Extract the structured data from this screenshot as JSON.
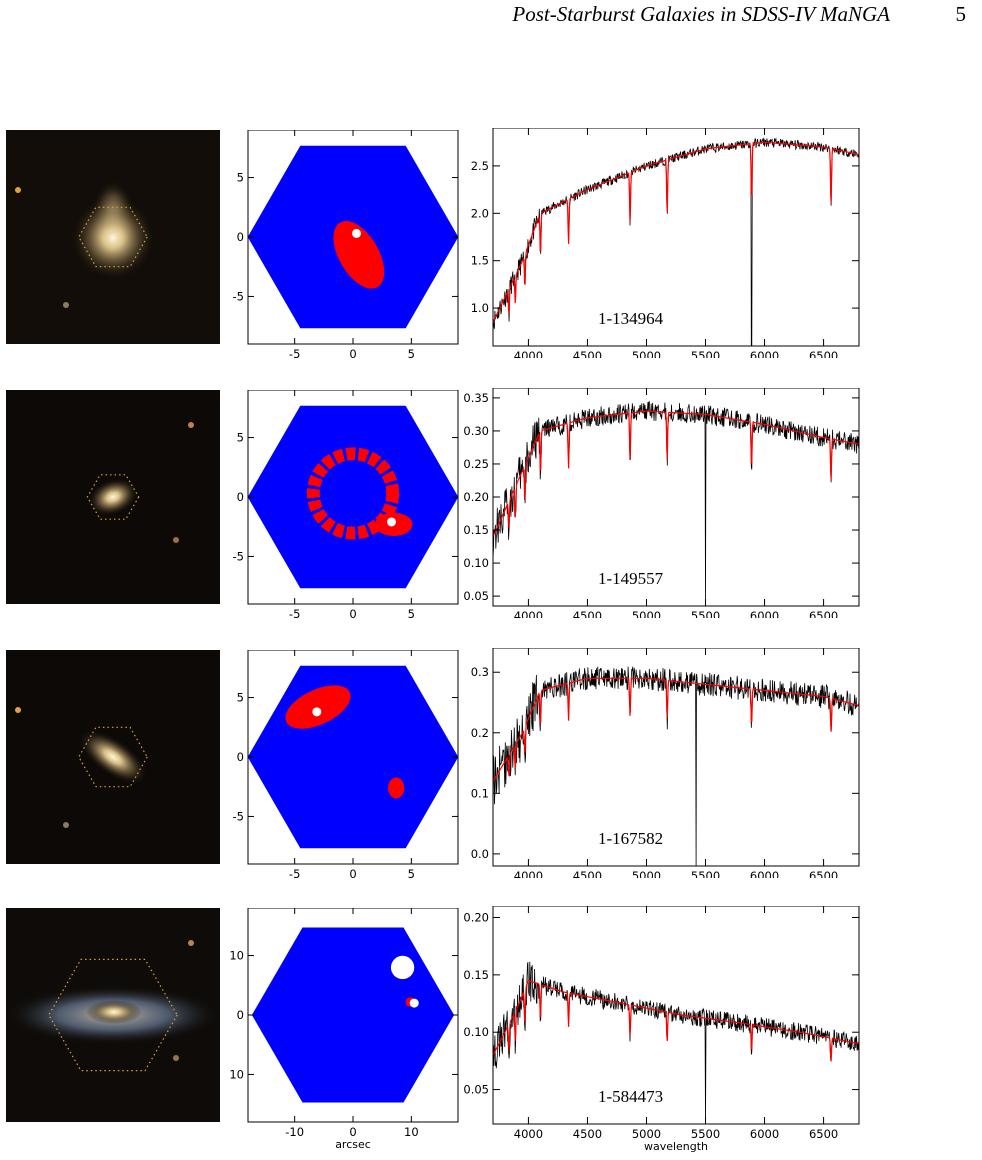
{
  "header": {
    "running_title": "Post-Starburst Galaxies in SDSS-IV MaNGA",
    "page_number": "5"
  },
  "axes_titles": {
    "map_x": "arcsec",
    "spectrum_x": "wavelength"
  },
  "colors": {
    "map_fill": "#0000ff",
    "psb_region": "#ff0000",
    "spectrum_data": "#000000",
    "spectrum_model": "#ff0000",
    "ifu_outline": "#d8a335"
  },
  "galaxies": [
    {
      "plate_ifu": "1-134964",
      "image": {
        "ifu_hex_radius_frac": 0.16,
        "galaxy": "compact-bulge",
        "bg": "#120d08"
      },
      "map": {
        "x_ticks": [
          "-5",
          "0",
          "5"
        ],
        "y_ticks": [
          "5",
          "0",
          "-5"
        ],
        "x_tick_values": [
          -5,
          0,
          5
        ],
        "y_tick_values": [
          5,
          0,
          -5
        ],
        "range": [
          -9,
          9
        ],
        "ifu_radius": 8.6,
        "psb_blobs": [
          {
            "x": 0.5,
            "y": -1.5,
            "rx": 1.7,
            "ry": 3.2,
            "rot": -30
          }
        ],
        "hole": null,
        "center_dot": {
          "x": 0.3,
          "y": 0.3
        }
      },
      "spectrum": {
        "y_ticks": [
          "2.5",
          "2.0",
          "1.5",
          "1.0"
        ],
        "y_tick_values": [
          2.5,
          2.0,
          1.5,
          1.0
        ],
        "ylim": [
          0.6,
          2.9
        ],
        "x_ticks": [
          "4000",
          "4500",
          "5000",
          "5500",
          "6000",
          "6500"
        ],
        "x_tick_values": [
          4000,
          4500,
          5000,
          5500,
          6000,
          6500
        ],
        "xlim": [
          3700,
          6800
        ],
        "continuum": [
          [
            3700,
            0.85
          ],
          [
            3950,
            1.5
          ],
          [
            4100,
            2.0
          ],
          [
            4500,
            2.25
          ],
          [
            5000,
            2.5
          ],
          [
            5500,
            2.68
          ],
          [
            6000,
            2.75
          ],
          [
            6500,
            2.7
          ],
          [
            6800,
            2.62
          ]
        ],
        "noise": 0.05,
        "spike": 5890
      }
    },
    {
      "plate_ifu": "1-149557",
      "image": {
        "ifu_hex_radius_frac": 0.12,
        "galaxy": "small-elliptical",
        "bg": "#0c0906"
      },
      "map": {
        "x_ticks": [
          "-5",
          "0",
          "5"
        ],
        "y_ticks": [
          "5",
          "0",
          "-5"
        ],
        "x_tick_values": [
          -5,
          0,
          5
        ],
        "y_tick_values": [
          5,
          0,
          -5
        ],
        "range": [
          -9,
          9
        ],
        "ifu_radius": 8.6,
        "psb_ring": {
          "x": 0,
          "y": 0.3,
          "r": 3.4,
          "w": 1.1
        },
        "psb_blobs": [
          {
            "x": 3.5,
            "y": -2.3,
            "rx": 1.6,
            "ry": 1.0,
            "rot": 0
          }
        ],
        "hole": null,
        "center_dot": {
          "x": 3.3,
          "y": -2.1
        }
      },
      "spectrum": {
        "y_ticks": [
          "0.35",
          "0.30",
          "0.25",
          "0.20",
          "0.15",
          "0.10",
          "0.05"
        ],
        "y_tick_values": [
          0.35,
          0.3,
          0.25,
          0.2,
          0.15,
          0.1,
          0.05
        ],
        "ylim": [
          0.035,
          0.365
        ],
        "x_ticks": [
          "4000",
          "4500",
          "5000",
          "5500",
          "6000",
          "6500"
        ],
        "x_tick_values": [
          4000,
          4500,
          5000,
          5500,
          6000,
          6500
        ],
        "xlim": [
          3700,
          6800
        ],
        "continuum": [
          [
            3700,
            0.14
          ],
          [
            3950,
            0.24
          ],
          [
            4100,
            0.3
          ],
          [
            4500,
            0.32
          ],
          [
            5000,
            0.33
          ],
          [
            5500,
            0.325
          ],
          [
            6000,
            0.31
          ],
          [
            6500,
            0.29
          ],
          [
            6800,
            0.28
          ]
        ],
        "noise": 0.015,
        "spike": 5500
      }
    },
    {
      "plate_ifu": "1-167582",
      "image": {
        "ifu_hex_radius_frac": 0.16,
        "galaxy": "inclined-disk",
        "bg": "#0c0907"
      },
      "map": {
        "x_ticks": [
          "-5",
          "0",
          "5"
        ],
        "y_ticks": [
          "5",
          "0",
          "-5"
        ],
        "x_tick_values": [
          -5,
          0,
          5
        ],
        "y_tick_values": [
          5,
          0,
          -5
        ],
        "range": [
          -9,
          9
        ],
        "ifu_radius": 8.6,
        "psb_blobs": [
          {
            "x": -3.0,
            "y": 4.2,
            "rx": 3.0,
            "ry": 1.5,
            "rot": -25
          },
          {
            "x": 3.7,
            "y": -2.6,
            "rx": 0.7,
            "ry": 0.9,
            "rot": 0
          }
        ],
        "hole": null,
        "center_dot": {
          "x": -3.1,
          "y": 3.8
        }
      },
      "spectrum": {
        "y_ticks": [
          "0.3",
          "0.2",
          "0.1",
          "0.0"
        ],
        "y_tick_values": [
          0.3,
          0.2,
          0.1,
          0.0
        ],
        "ylim": [
          -0.02,
          0.34
        ],
        "x_ticks": [
          "4000",
          "4500",
          "5000",
          "5500",
          "6000",
          "6500"
        ],
        "x_tick_values": [
          4000,
          4500,
          5000,
          5500,
          6000,
          6500
        ],
        "xlim": [
          3700,
          6800
        ],
        "continuum": [
          [
            3700,
            0.12
          ],
          [
            3950,
            0.2
          ],
          [
            4100,
            0.27
          ],
          [
            4500,
            0.29
          ],
          [
            5000,
            0.29
          ],
          [
            5500,
            0.28
          ],
          [
            6000,
            0.27
          ],
          [
            6500,
            0.26
          ],
          [
            6800,
            0.245
          ]
        ],
        "noise": 0.02,
        "spike": 5420
      }
    },
    {
      "plate_ifu": "1-584473",
      "image": {
        "ifu_hex_radius_frac": 0.3,
        "galaxy": "edge-on-spiral",
        "bg": "#0e0b08"
      },
      "map": {
        "x_ticks": [
          "-10",
          "0",
          "10"
        ],
        "y_ticks": [
          "10",
          "0",
          "-10"
        ],
        "x_tick_values": [
          -10,
          0,
          10
        ],
        "y_tick_values": [
          10,
          0,
          -10
        ],
        "range": [
          -18,
          18
        ],
        "ifu_radius": 16.5,
        "psb_blobs": [
          {
            "x": 9.8,
            "y": 2.2,
            "rx": 0.8,
            "ry": 0.8,
            "rot": 0
          }
        ],
        "hole": {
          "x": 8.5,
          "y": 8.0,
          "r": 2.0
        },
        "center_dot": {
          "x": 10.5,
          "y": 2.0
        }
      },
      "spectrum": {
        "y_ticks": [
          "0.20",
          "0.15",
          "0.10",
          "0.05"
        ],
        "y_tick_values": [
          0.2,
          0.15,
          0.1,
          0.05
        ],
        "ylim": [
          0.02,
          0.21
        ],
        "x_ticks": [
          "4000",
          "4500",
          "5000",
          "5500",
          "6000",
          "6500"
        ],
        "x_tick_values": [
          4000,
          4500,
          5000,
          5500,
          6000,
          6500
        ],
        "xlim": [
          3700,
          6800
        ],
        "continuum": [
          [
            3700,
            0.08
          ],
          [
            3900,
            0.12
          ],
          [
            4000,
            0.145
          ],
          [
            4300,
            0.135
          ],
          [
            4800,
            0.125
          ],
          [
            5300,
            0.115
          ],
          [
            5800,
            0.108
          ],
          [
            6300,
            0.1
          ],
          [
            6800,
            0.09
          ]
        ],
        "noise": 0.008,
        "spike": 5500
      }
    }
  ]
}
